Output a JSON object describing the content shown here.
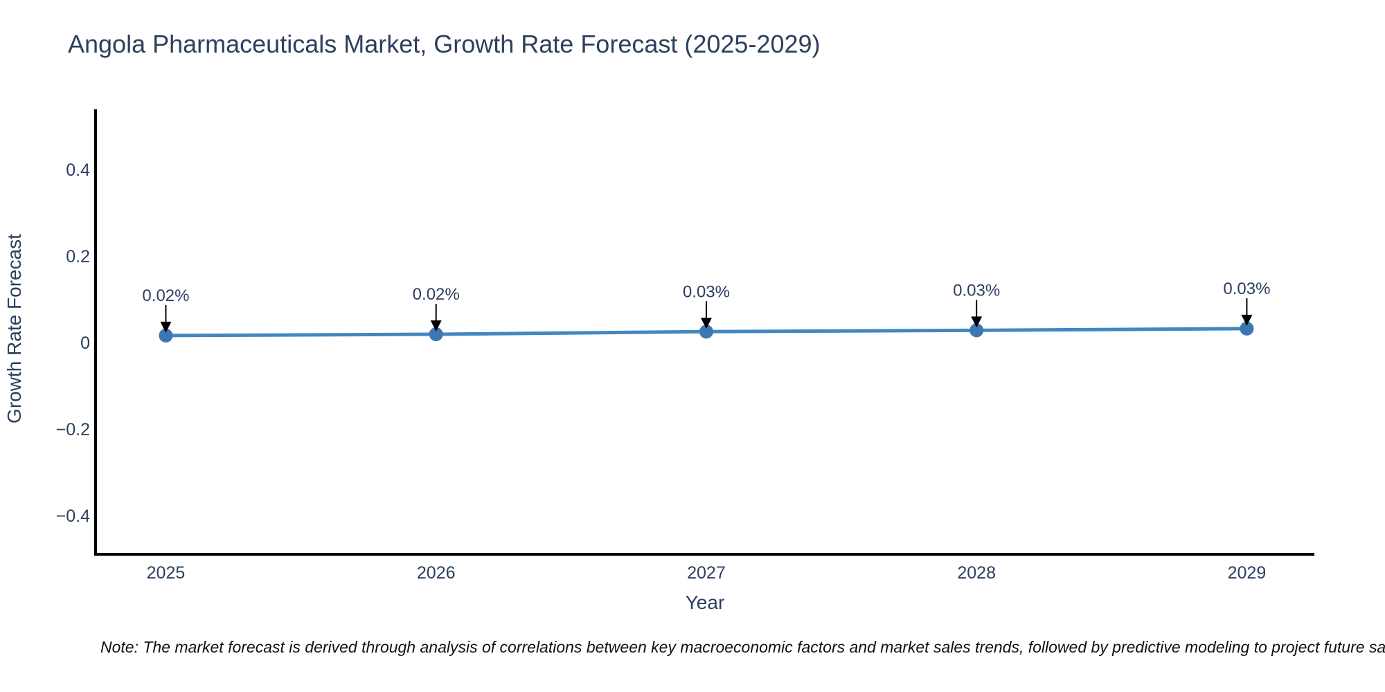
{
  "title": "Angola Pharmaceuticals Market, Growth Rate Forecast (2025-2029)",
  "note": "Note: The market forecast is derived through analysis of correlations between key macroeconomic factors and market sales trends, followed by predictive modeling to project future sa",
  "chart_data": {
    "type": "line",
    "title": "Angola Pharmaceuticals Market, Growth Rate Forecast (2025-2029)",
    "xlabel": "Year",
    "ylabel": "Growth Rate Forecast",
    "x": [
      2025,
      2026,
      2027,
      2028,
      2029
    ],
    "values": [
      0.02,
      0.02,
      0.03,
      0.03,
      0.03
    ],
    "values_underlying_estimate": [
      0.016,
      0.019,
      0.025,
      0.028,
      0.032
    ],
    "point_labels": [
      "0.02%",
      "0.02%",
      "0.03%",
      "0.03%",
      "0.03%"
    ],
    "x_tick_labels": [
      "2025",
      "2026",
      "2027",
      "2028",
      "2029"
    ],
    "y_ticks": [
      0.4,
      0.2,
      0,
      -0.2,
      -0.4
    ],
    "y_tick_labels": [
      "0.4",
      "0.2",
      "0",
      "−0.2",
      "−0.4"
    ],
    "xlim": [
      2024.74,
      2029.25
    ],
    "ylim": [
      -0.49,
      0.536
    ],
    "grid": false,
    "legend": "none",
    "annotations": "value labels with downward arrows above each point",
    "colors": {
      "line": "#4287c0",
      "marker": "#3d77b3",
      "axis": "#000000",
      "text": "#2a3f5f",
      "title_text": "#2d3f5e",
      "arrow": "#000000",
      "note_text": "#111111"
    }
  }
}
